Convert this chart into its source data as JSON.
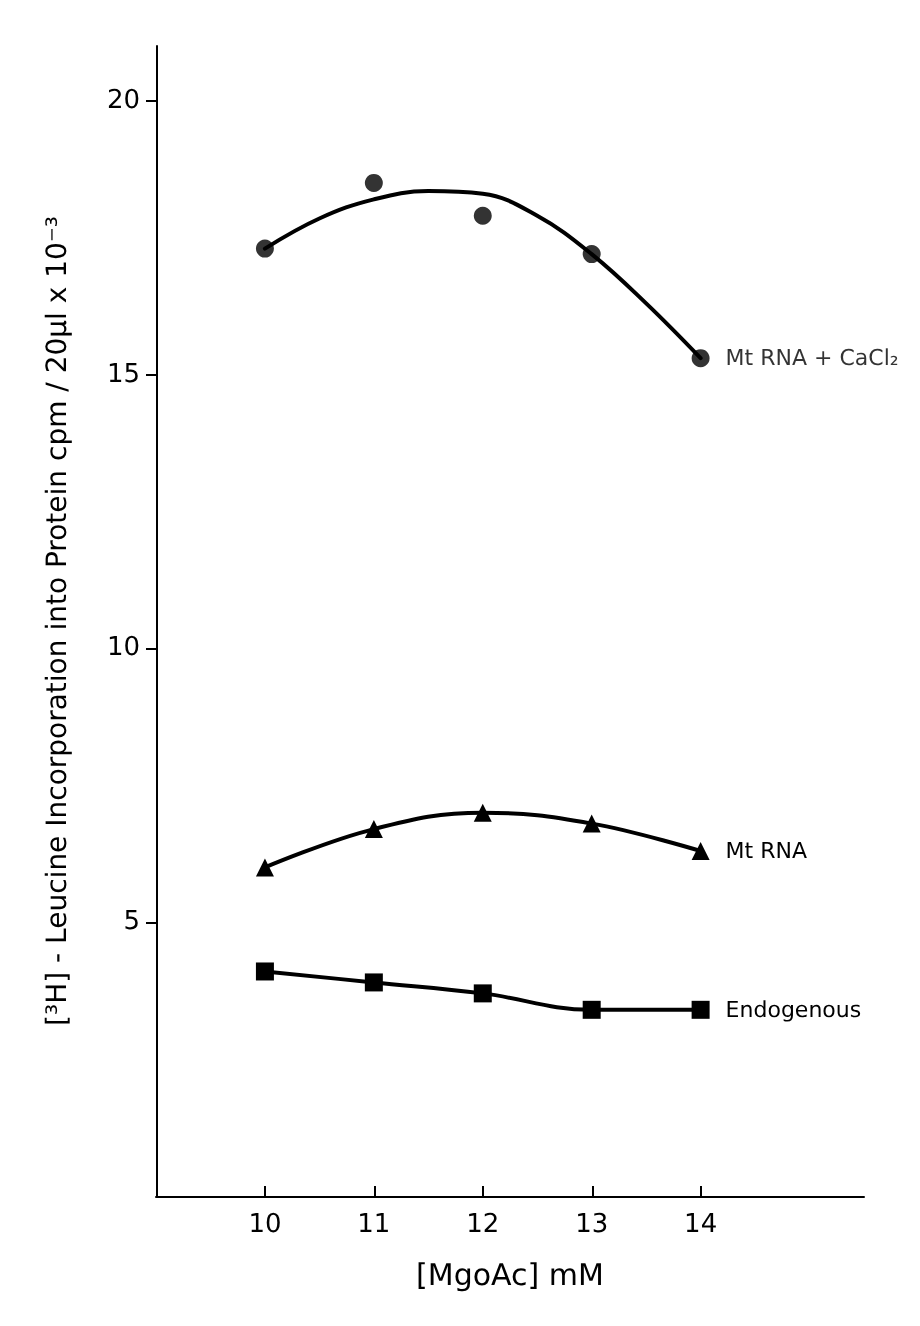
{
  "chart_data": {
    "type": "line",
    "xlabel": "[MgoAc] mM",
    "ylabel": "[³H] - Leucine Incorporation into Protein cpm / 20μl x 10⁻³",
    "x": [
      10,
      11,
      12,
      13,
      14
    ],
    "xlim": [
      9,
      15.5
    ],
    "xticks": [
      10,
      11,
      12,
      13,
      14
    ],
    "ylim": [
      0,
      21
    ],
    "yticks": [
      5,
      10,
      15,
      20
    ],
    "grid": false,
    "series": [
      {
        "name": "Mt RNA + CaCl₂",
        "type": "scatter",
        "marker": "circle",
        "color": "#000000",
        "values": [
          17.3,
          18.5,
          17.9,
          17.2,
          15.3
        ]
      },
      {
        "type": "line",
        "marker": "none",
        "color": "#000000",
        "x": [
          10,
          10.5,
          11,
          11.5,
          12,
          12.5,
          13,
          13.5,
          14
        ],
        "values": [
          17.3,
          17.85,
          18.2,
          18.35,
          18.3,
          17.9,
          17.2,
          16.3,
          15.3
        ]
      },
      {
        "name": "Mt RNA",
        "marker": "triangle",
        "color": "#000000",
        "values": [
          6.0,
          6.7,
          7.0,
          6.8,
          6.3
        ]
      },
      {
        "name": "Endogenous",
        "marker": "square",
        "color": "#000000",
        "values": [
          4.1,
          3.9,
          3.7,
          3.4,
          3.4
        ]
      }
    ]
  }
}
